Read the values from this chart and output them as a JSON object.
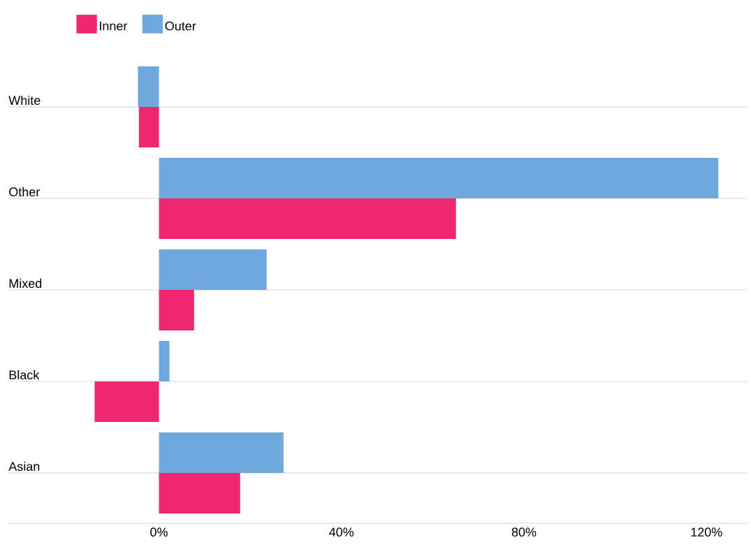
{
  "chart_data": {
    "type": "bar",
    "orientation": "horizontal",
    "categories": [
      "White",
      "Other",
      "Mixed",
      "Black",
      "Asian"
    ],
    "series": [
      {
        "name": "Inner",
        "color": "#ef2670",
        "values": [
          -4.4,
          65.1,
          7.7,
          -14.1,
          17.8
        ]
      },
      {
        "name": "Outer",
        "color": "#6fa8dc",
        "values": [
          -4.6,
          122.6,
          23.6,
          2.3,
          27.3
        ]
      }
    ],
    "xlim": [
      -33,
      129
    ],
    "xticks": [
      {
        "value": 0,
        "label": "0%"
      },
      {
        "value": 40,
        "label": "40%"
      },
      {
        "value": 80,
        "label": "80%"
      },
      {
        "value": 120,
        "label": "120%"
      }
    ],
    "grid": "y",
    "legend": "top left"
  }
}
